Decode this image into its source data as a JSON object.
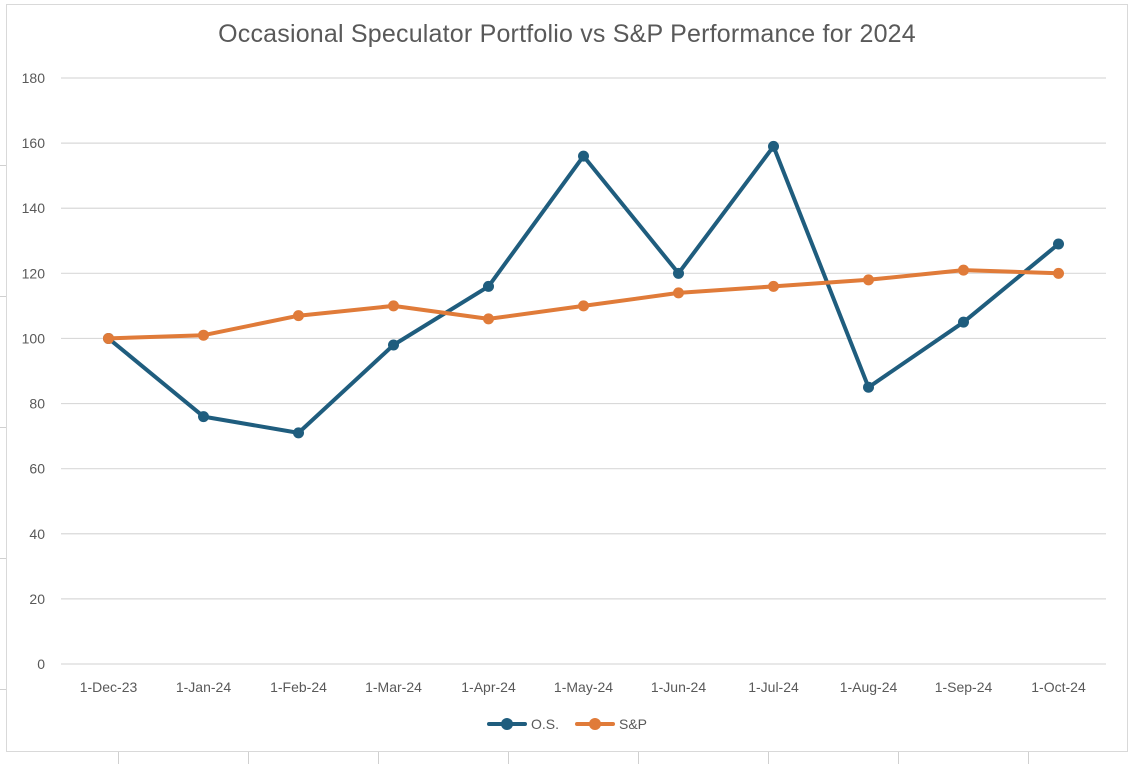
{
  "chart_data": {
    "type": "line",
    "title": "Occasional Speculator Portfolio vs S&P Performance for 2024",
    "xlabel": "",
    "ylabel": "",
    "categories": [
      "1-Dec-23",
      "1-Jan-24",
      "1-Feb-24",
      "1-Mar-24",
      "1-Apr-24",
      "1-May-24",
      "1-Jun-24",
      "1-Jul-24",
      "1-Aug-24",
      "1-Sep-24",
      "1-Oct-24"
    ],
    "ylim": [
      0,
      180
    ],
    "yticks": [
      0,
      20,
      40,
      60,
      80,
      100,
      120,
      140,
      160,
      180
    ],
    "grid": true,
    "legend": "bottom",
    "series": [
      {
        "name": "O.S.",
        "color": "#1f5d7e",
        "values": [
          100,
          76,
          71,
          98,
          116,
          156,
          120,
          159,
          85,
          105,
          129
        ]
      },
      {
        "name": "S&P",
        "color": "#e07b39",
        "values": [
          100,
          101,
          107,
          110,
          106,
          110,
          114,
          116,
          118,
          121,
          120
        ]
      }
    ]
  },
  "colors": {
    "gridline": "#d9d9d9",
    "axis_text": "#595959",
    "title_text": "#595959"
  }
}
